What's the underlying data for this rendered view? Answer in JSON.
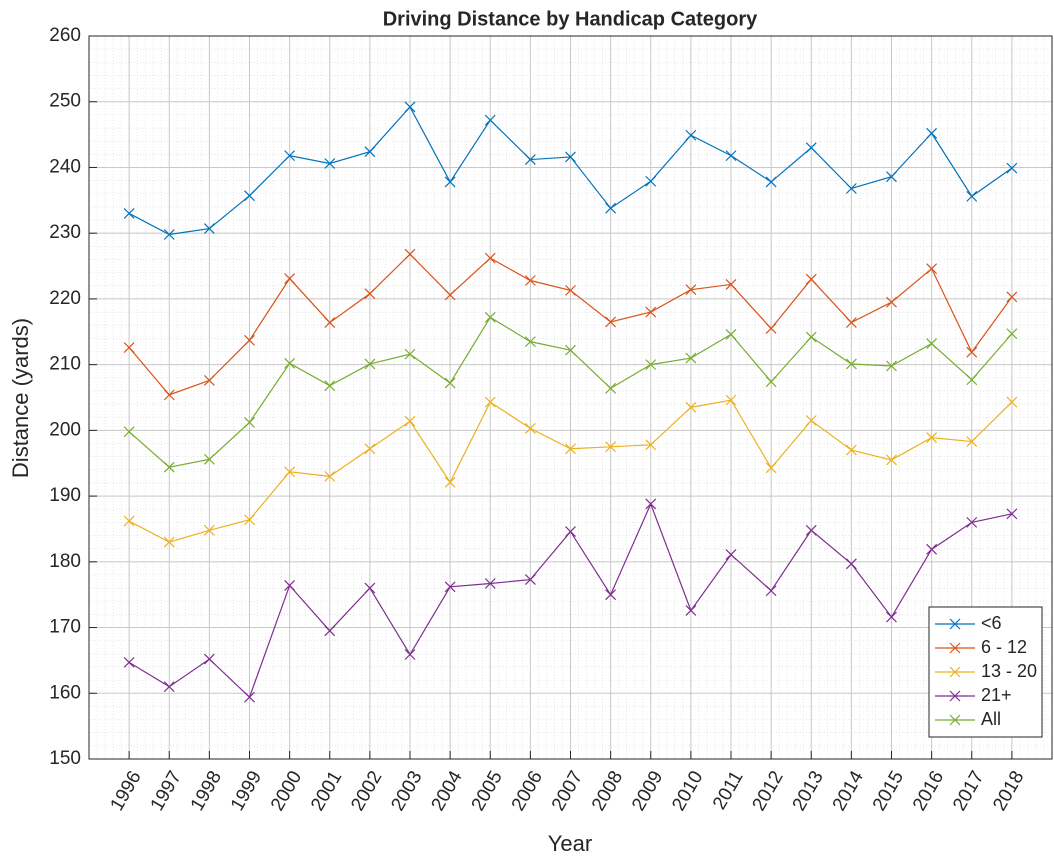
{
  "chart_data": {
    "type": "line",
    "title": "Driving Distance by Handicap Category",
    "xlabel": "Year",
    "ylabel": "Distance (yards)",
    "x": [
      1996,
      1997,
      1998,
      1999,
      2000,
      2001,
      2002,
      2003,
      2004,
      2005,
      2006,
      2007,
      2008,
      2009,
      2010,
      2011,
      2012,
      2013,
      2014,
      2015,
      2016,
      2017,
      2018
    ],
    "xlim": [
      1995,
      2019
    ],
    "xticks": [
      1996,
      1997,
      1998,
      1999,
      2000,
      2001,
      2002,
      2003,
      2004,
      2005,
      2006,
      2007,
      2008,
      2009,
      2010,
      2011,
      2012,
      2013,
      2014,
      2015,
      2016,
      2017,
      2018
    ],
    "ylim": [
      150,
      260
    ],
    "yticks": [
      150,
      160,
      170,
      180,
      190,
      200,
      210,
      220,
      230,
      240,
      250,
      260
    ],
    "grid": true,
    "minor_grid": true,
    "legend_position": "southeast",
    "marker": "x",
    "series": [
      {
        "name": "<6",
        "color": "#0072BD",
        "values": [
          233,
          229.8,
          230.7,
          235.7,
          241.8,
          240.6,
          242.4,
          249.2,
          237.8,
          247.2,
          241.2,
          241.6,
          233.8,
          237.9,
          244.9,
          241.8,
          237.8,
          243,
          236.8,
          238.6,
          245.2,
          235.6,
          239.9
        ]
      },
      {
        "name": "6 - 12",
        "color": "#D95319",
        "values": [
          212.6,
          205.4,
          207.6,
          213.7,
          223.1,
          216.4,
          220.8,
          226.8,
          220.6,
          226.2,
          222.8,
          221.3,
          216.5,
          218,
          221.4,
          222.2,
          215.5,
          223,
          216.4,
          219.5,
          224.6,
          211.9,
          220.3
        ]
      },
      {
        "name": "13 - 20",
        "color": "#EDB120",
        "values": [
          186.2,
          183,
          184.8,
          186.4,
          193.7,
          193,
          197.2,
          201.4,
          192.1,
          204.3,
          200.3,
          197.2,
          197.5,
          197.8,
          203.5,
          204.6,
          194.3,
          201.5,
          197,
          195.5,
          198.9,
          198.3,
          204.3
        ]
      },
      {
        "name": "21+",
        "color": "#7E2F8E",
        "values": [
          164.7,
          161,
          165.2,
          159.4,
          176.4,
          169.5,
          176,
          165.9,
          176.2,
          176.7,
          177.3,
          184.6,
          175,
          188.8,
          172.6,
          181.1,
          175.6,
          184.8,
          179.7,
          171.6,
          181.9,
          186,
          187.3
        ]
      },
      {
        "name": "All",
        "color": "#77AC30",
        "values": [
          199.8,
          194.4,
          195.6,
          201.2,
          210.2,
          206.8,
          210.1,
          211.6,
          207.2,
          217.2,
          213.5,
          212.2,
          206.4,
          210,
          211,
          214.6,
          207.4,
          214.2,
          210.1,
          209.8,
          213.2,
          207.7,
          214.7
        ]
      }
    ]
  }
}
